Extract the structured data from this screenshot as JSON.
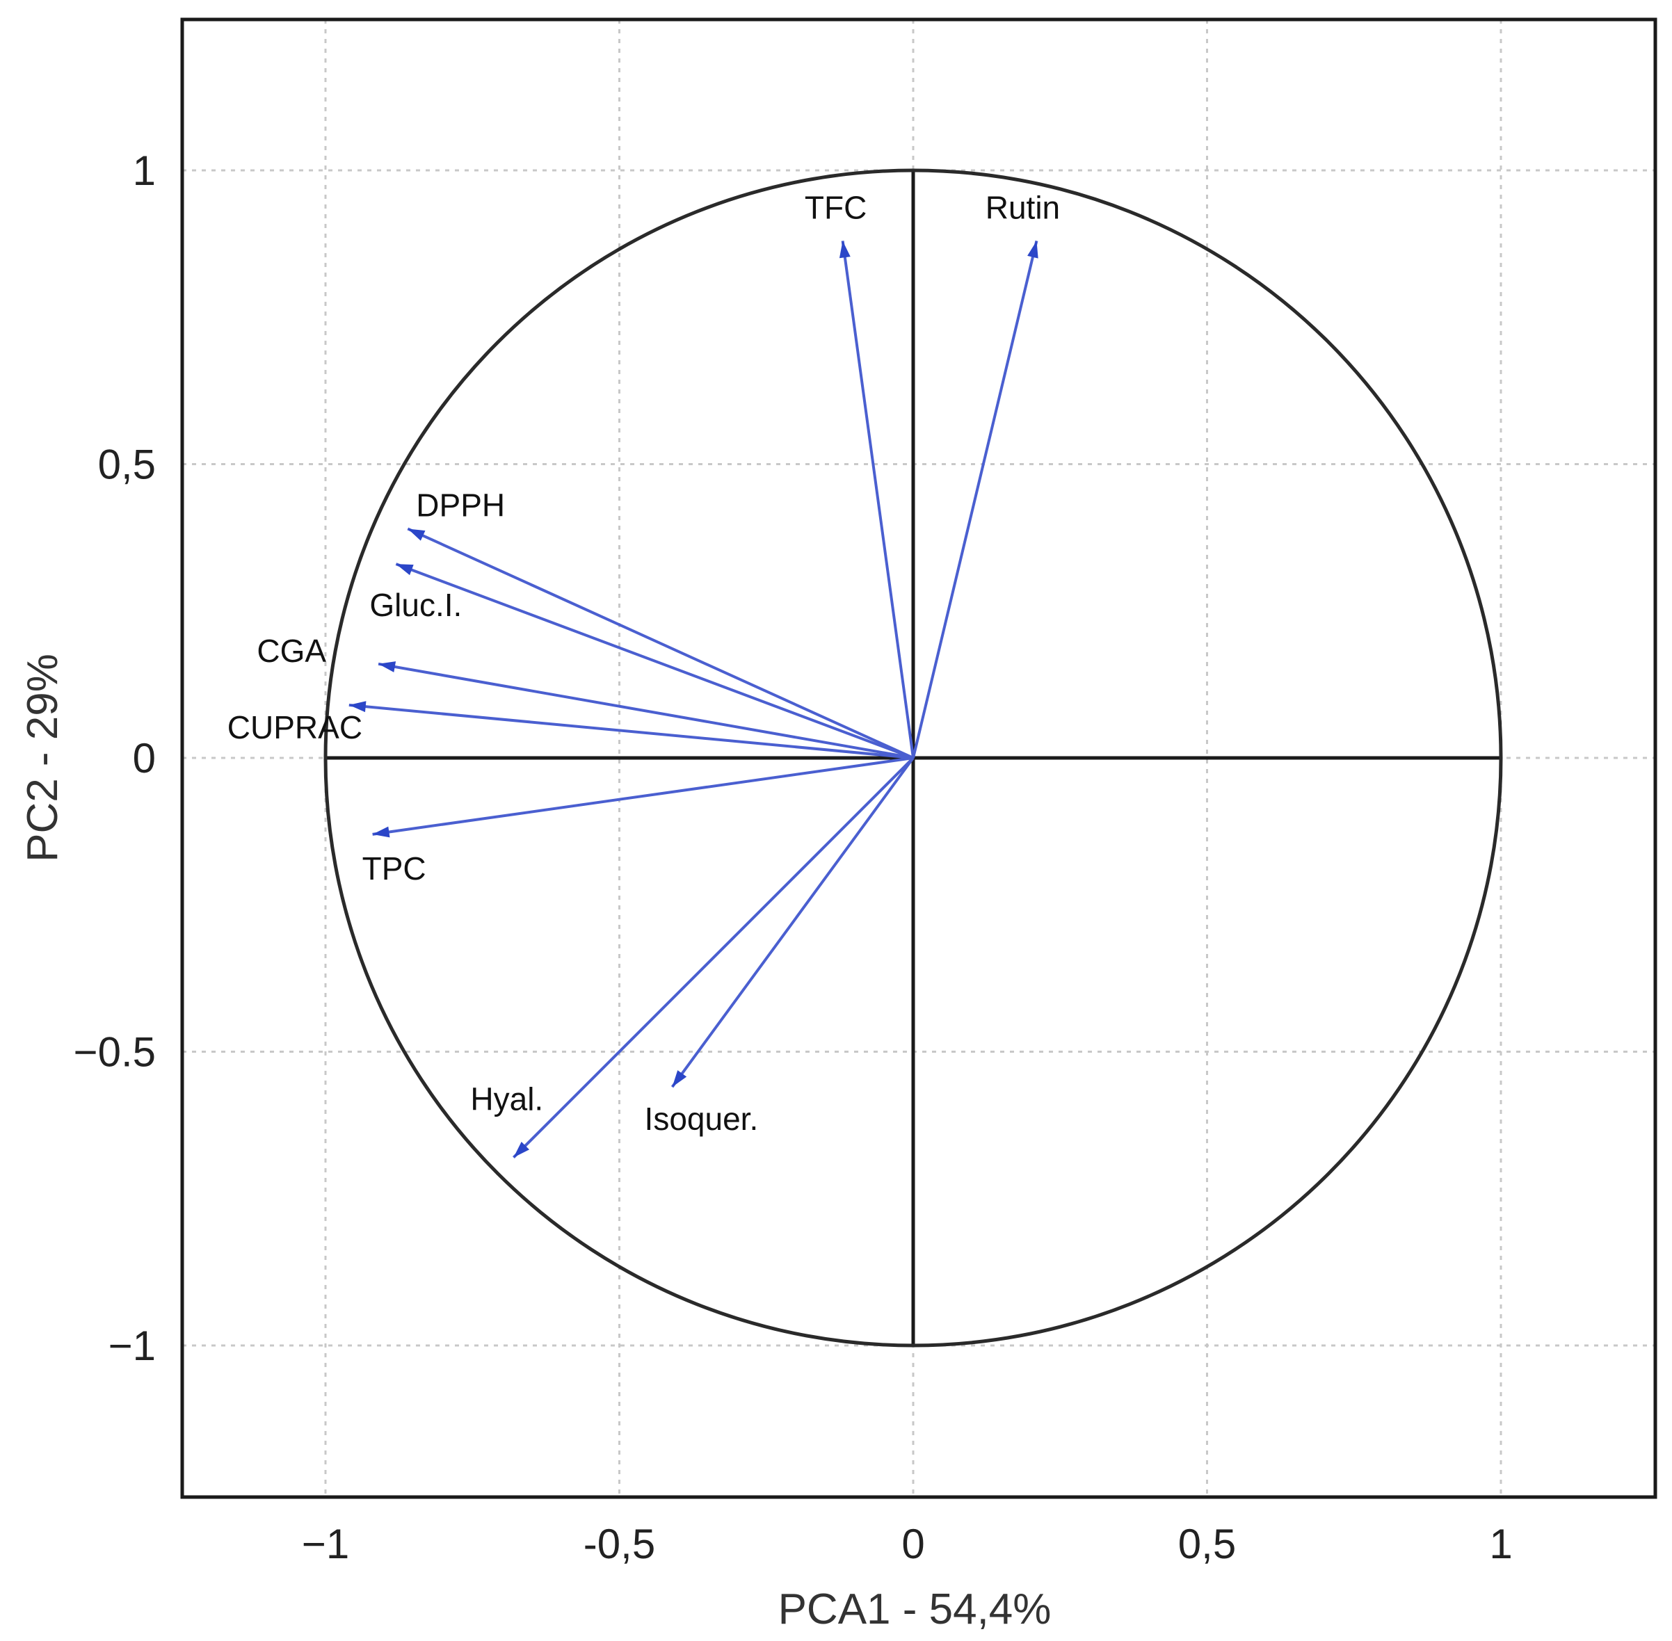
{
  "chart_data": {
    "type": "scatter",
    "subtype": "pca-correlation-circle",
    "title": "",
    "xlabel": "PCA1 - 54,4%",
    "ylabel": "PC2 - 29%",
    "xlim": [
      -1.26,
      1.26
    ],
    "ylim": [
      -1.26,
      1.26
    ],
    "grid": true,
    "x_ticks": [
      {
        "value": -1,
        "label": "−1"
      },
      {
        "value": -0.5,
        "label": "-0,5"
      },
      {
        "value": 0,
        "label": "0"
      },
      {
        "value": 0.5,
        "label": "0,5"
      },
      {
        "value": 1,
        "label": "1"
      }
    ],
    "y_ticks": [
      {
        "value": 1,
        "label": "1"
      },
      {
        "value": 0.5,
        "label": "0,5"
      },
      {
        "value": 0,
        "label": "0"
      },
      {
        "value": -0.5,
        "label": "−0.5"
      },
      {
        "value": -1,
        "label": "−1"
      }
    ],
    "circle_radius": 1,
    "colors": {
      "arrow": "#4a5fd0",
      "arrowhead": "#2b46c8",
      "axes": "#1a1a1a",
      "grid": "#c8c8c8"
    },
    "variables": [
      {
        "name": "TFC",
        "x": -0.12,
        "y": 0.88
      },
      {
        "name": "Rutin",
        "x": 0.21,
        "y": 0.88
      },
      {
        "name": "DPPH",
        "x": -0.86,
        "y": 0.39
      },
      {
        "name": "Gluc.I.",
        "x": -0.88,
        "y": 0.33
      },
      {
        "name": "CGA",
        "x": -0.91,
        "y": 0.16
      },
      {
        "name": "CUPRAC",
        "x": -0.96,
        "y": 0.09
      },
      {
        "name": "TPC",
        "x": -0.92,
        "y": -0.13
      },
      {
        "name": "Hyal.",
        "x": -0.68,
        "y": -0.68
      },
      {
        "name": "Isoquer.",
        "x": -0.41,
        "y": -0.56
      }
    ]
  }
}
